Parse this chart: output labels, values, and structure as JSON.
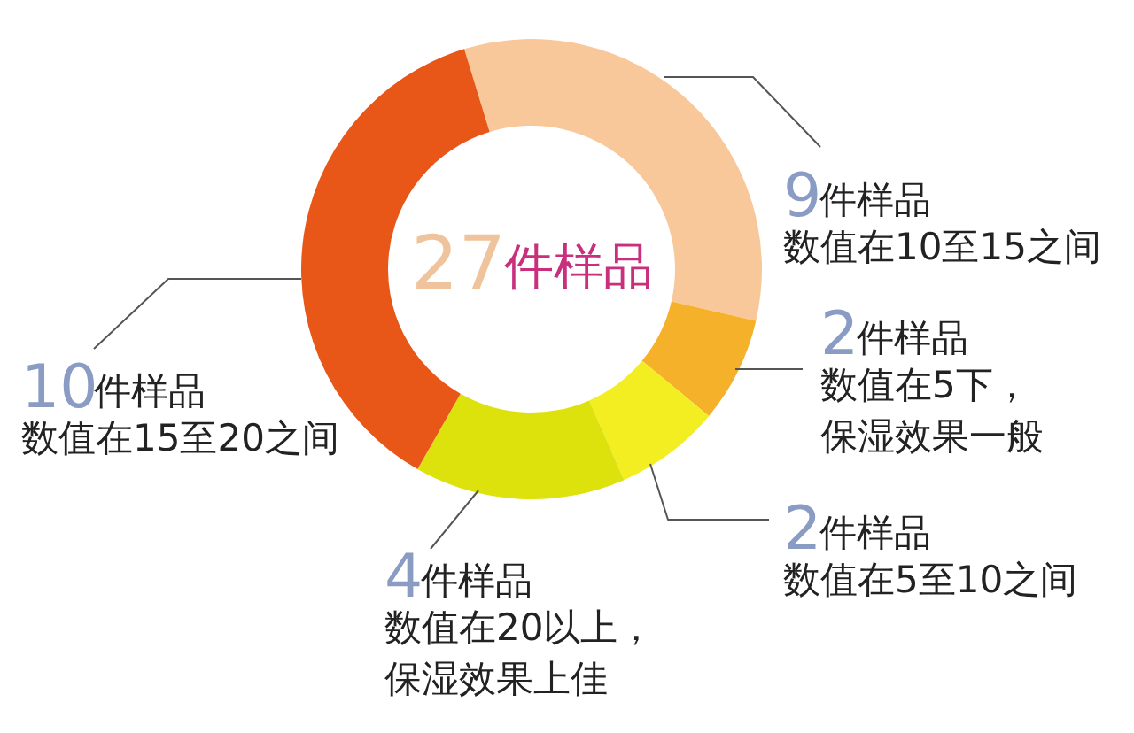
{
  "chart_data": {
    "type": "donut",
    "title": "27件样品",
    "categories": [
      "数值在10至15之间",
      "数值在5下，保湿效果一般",
      "数值在5至10之间",
      "数值在20以上，保湿效果上佳",
      "数值在15至20之间"
    ],
    "values": [
      9,
      2,
      2,
      4,
      10
    ],
    "value_labels": [
      "9件样品",
      "2件样品",
      "2件样品",
      "4件样品",
      "10件样品"
    ],
    "colors": [
      "#f8c89b",
      "#f6b12a",
      "#f2ee22",
      "#dde20c",
      "#e85618"
    ]
  }
}
